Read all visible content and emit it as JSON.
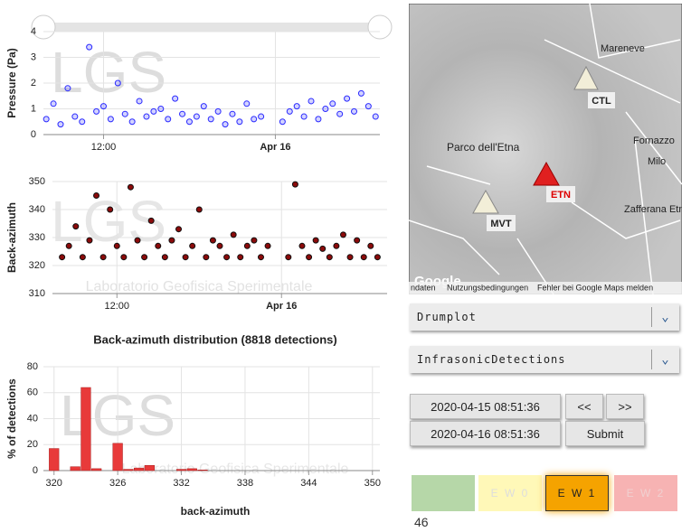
{
  "chart_data": [
    {
      "type": "scatter",
      "y_label": "Pressure (Pa)",
      "xlim": [
        7.8,
        31.3
      ],
      "xticks": [
        {
          "value": 12,
          "label": "12:00"
        },
        {
          "value": 24,
          "label": "Apr 16"
        }
      ],
      "ylim": [
        0,
        4
      ],
      "yticks": [
        0,
        1,
        2,
        3,
        4
      ],
      "grid": true,
      "color": "#2a2aff",
      "x": [
        8,
        8.5,
        9,
        9.5,
        10,
        10.5,
        11,
        11.5,
        12,
        12.5,
        13,
        13.5,
        14,
        14.5,
        15,
        15.5,
        16,
        16.5,
        17,
        17.5,
        18,
        18.5,
        19,
        19.5,
        20,
        20.5,
        21,
        21.5,
        22,
        22.5,
        23,
        24.5,
        25,
        25.5,
        26,
        26.5,
        27,
        27.5,
        28,
        28.5,
        29,
        29.5,
        30,
        30.5,
        31
      ],
      "values": [
        0.6,
        1.2,
        0.4,
        1.8,
        0.7,
        0.5,
        3.4,
        0.9,
        1.1,
        0.6,
        2.0,
        0.8,
        0.5,
        1.3,
        0.7,
        0.9,
        1.0,
        0.6,
        1.4,
        0.8,
        0.5,
        0.7,
        1.1,
        0.6,
        0.9,
        0.4,
        0.8,
        0.5,
        1.2,
        0.6,
        0.7,
        0.5,
        0.9,
        1.1,
        0.7,
        1.3,
        0.6,
        1.0,
        1.2,
        0.8,
        1.4,
        0.9,
        1.6,
        1.1,
        0.7
      ]
    },
    {
      "type": "scatter",
      "y_label": "Back-azimuth",
      "xlim": [
        7.3,
        31.7
      ],
      "xticks": [
        {
          "value": 12,
          "label": "12:00"
        },
        {
          "value": 24,
          "label": "Apr 16"
        }
      ],
      "ylim": [
        310,
        350
      ],
      "yticks": [
        310,
        320,
        330,
        340,
        350
      ],
      "grid": true,
      "color": "#8b0a0a",
      "x": [
        8,
        8.5,
        9,
        9.5,
        10,
        10.5,
        11,
        11.5,
        12,
        12.5,
        13,
        13.5,
        14,
        14.5,
        15,
        15.5,
        16,
        16.5,
        17,
        17.5,
        18,
        18.5,
        19,
        19.5,
        20,
        20.5,
        21,
        21.5,
        22,
        22.5,
        23,
        24.5,
        25,
        25.5,
        26,
        26.5,
        27,
        27.5,
        28,
        28.5,
        29,
        29.5,
        30,
        30.5,
        31
      ],
      "values": [
        323,
        327,
        334,
        323,
        329,
        345,
        323,
        340,
        327,
        323,
        348,
        329,
        323,
        336,
        327,
        323,
        329,
        333,
        323,
        327,
        340,
        323,
        329,
        327,
        323,
        331,
        323,
        327,
        329,
        323,
        327,
        323,
        349,
        327,
        323,
        329,
        326,
        323,
        327,
        331,
        323,
        329,
        323,
        327,
        323
      ]
    },
    {
      "type": "histogram",
      "title": "Back-azimuth distribution (8818 detections)",
      "x_label": "back-azimuth",
      "y_label": "% of detections",
      "xlim": [
        319,
        350.7
      ],
      "xticks": [
        320,
        326,
        332,
        338,
        344,
        350
      ],
      "ylim": [
        0,
        80
      ],
      "yticks": [
        0,
        20,
        40,
        60,
        80
      ],
      "grid": true,
      "color": "#e83a3a",
      "bins": [
        319.5,
        320.5,
        321.5,
        322.5,
        323.5,
        324.5,
        325.5,
        326.5,
        327.5,
        328.5,
        329.5,
        330.5,
        331.5,
        332.5,
        333.5,
        334.5,
        335.5,
        336.5,
        337.5,
        338.5,
        339.5,
        340.5,
        341.5,
        342.5,
        343.5,
        344.5,
        345.5,
        346.5,
        347.5,
        348.5,
        349.5,
        350.5
      ],
      "counts": [
        17,
        0,
        3,
        64,
        1.5,
        0,
        21,
        1,
        2,
        4,
        0,
        0,
        1,
        1.5,
        0.5,
        0,
        0,
        0,
        0,
        0,
        0,
        0,
        0,
        0,
        0,
        0,
        0,
        0,
        0,
        0,
        0
      ]
    }
  ],
  "watermark": {
    "logo": "LGS",
    "lab": "Laboratorio Geofisica Sperimentale"
  },
  "map": {
    "places": [
      "Mareneve",
      "Parco dell'Etna",
      "Fornazzo",
      "Milo",
      "Zafferana Etnea"
    ],
    "stations": [
      "CTL",
      "ETN",
      "MVT"
    ],
    "brand": "Google",
    "footer": [
      "ndaten",
      "Nutzungsbedingungen",
      "Fehler bei Google Maps melden"
    ]
  },
  "controls": {
    "dropdowns": [
      "Drumplot",
      "InfrasonicDetections"
    ],
    "start": "2020-04-15 08:51:36",
    "end": "2020-04-16 08:51:36",
    "prev": "<<",
    "next": ">>",
    "submit": "Submit",
    "alerts": [
      "E W 0",
      "E W 1",
      "E W 2"
    ],
    "count": "46"
  }
}
